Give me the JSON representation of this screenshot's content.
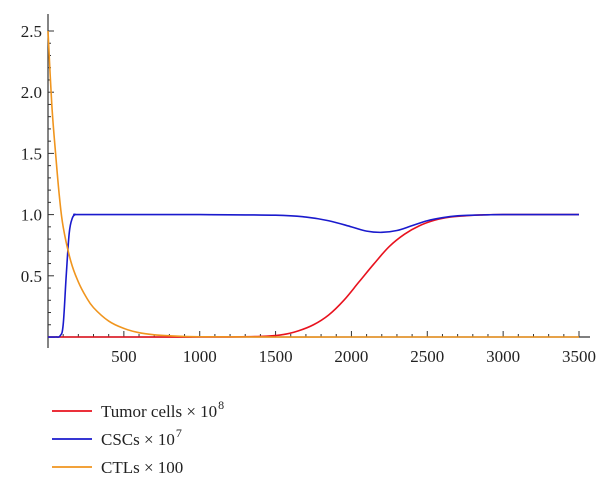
{
  "chart_data": {
    "type": "line",
    "title": "",
    "xlabel": "",
    "ylabel": "",
    "xlim": [
      0,
      3500
    ],
    "ylim": [
      0,
      2.5
    ],
    "x_ticks": [
      500,
      1000,
      1500,
      2000,
      2500,
      3000,
      3500
    ],
    "x_tick_labels": [
      "500",
      "1000",
      "1500",
      "2000",
      "2500",
      "3000",
      "3500"
    ],
    "y_ticks": [
      0.5,
      1.0,
      1.5,
      2.0,
      2.5
    ],
    "y_tick_labels": [
      "0.5",
      "1.0",
      "1.5",
      "2.0",
      "2.5"
    ],
    "grid": false,
    "legend": "bottom-left",
    "series": [
      {
        "name": "Tumor cells × 10",
        "name_sup": "8",
        "color": "#e8121e",
        "x": [
          0,
          500,
          1000,
          1400,
          1550,
          1650,
          1750,
          1850,
          1950,
          2050,
          2150,
          2250,
          2350,
          2450,
          2550,
          2650,
          2750,
          2850,
          3000,
          3500
        ],
        "values": [
          0,
          0,
          0,
          0.005,
          0.02,
          0.05,
          0.1,
          0.18,
          0.3,
          0.45,
          0.6,
          0.74,
          0.84,
          0.91,
          0.955,
          0.98,
          0.99,
          0.997,
          1.0,
          1.0
        ]
      },
      {
        "name": "CSCs × 10",
        "name_sup": "7",
        "color": "#1a1acd",
        "x": [
          0,
          50,
          80,
          100,
          120,
          140,
          160,
          180,
          200,
          500,
          1000,
          1500,
          1700,
          1850,
          2000,
          2100,
          2200,
          2300,
          2400,
          2500,
          2600,
          2700,
          2800,
          2900,
          3000,
          3500
        ],
        "values": [
          0,
          0,
          0.01,
          0.1,
          0.5,
          0.85,
          0.97,
          1.0,
          1.0,
          1.0,
          1.0,
          0.995,
          0.98,
          0.95,
          0.9,
          0.865,
          0.855,
          0.87,
          0.91,
          0.95,
          0.975,
          0.99,
          0.995,
          0.998,
          1.0,
          1.0
        ]
      },
      {
        "name": "CTLs × 100",
        "name_sup": "",
        "color": "#f0951e",
        "x": [
          0,
          25,
          50,
          75,
          100,
          150,
          200,
          250,
          300,
          400,
          500,
          600,
          700,
          800,
          1000,
          1500,
          2000,
          3000,
          3500
        ],
        "values": [
          2.5,
          1.9,
          1.5,
          1.15,
          0.9,
          0.62,
          0.45,
          0.33,
          0.24,
          0.13,
          0.07,
          0.035,
          0.018,
          0.01,
          0.002,
          0,
          0,
          0,
          0
        ]
      }
    ]
  }
}
